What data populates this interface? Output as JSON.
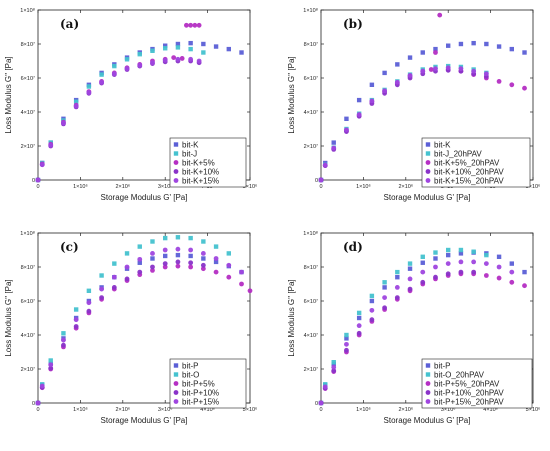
{
  "colors": {
    "blue": "#5b5fd6",
    "cyan": "#45c2cf",
    "magenta": "#b52fc4",
    "purple": "#8a33c9",
    "violet": "#a046e0"
  },
  "chart_data": [
    {
      "type": "scatter",
      "panel_label": "(a)",
      "xlabel": "Storage Modulus G' [Pa]",
      "ylabel": "Loss Modulus G'' [Pa]",
      "xlim": [
        0,
        5000000
      ],
      "ylim": [
        0,
        100000000
      ],
      "x_ticks": [
        "0",
        "1×10⁶",
        "2×10⁶",
        "3×10⁶",
        "4×10⁶",
        "5×10⁶"
      ],
      "y_ticks": [
        "0",
        "2×10⁷",
        "4×10⁷",
        "6×10⁷",
        "8×10⁷",
        "1×10⁸"
      ],
      "legend_position": "lower-right",
      "series": [
        {
          "name": "bit-K",
          "marker": "square",
          "color": "#5b5fd6",
          "x": [
            0,
            100000,
            300000,
            600000,
            900000,
            1200000,
            1500000,
            1800000,
            2100000,
            2400000,
            2700000,
            3000000,
            3300000,
            3600000,
            3900000,
            4200000,
            4500000,
            4800000
          ],
          "y": [
            0,
            10000000,
            22000000,
            36000000,
            47000000,
            56000000,
            63000000,
            68000000,
            72000000,
            75000000,
            77000000,
            79000000,
            80000000,
            80500000,
            80000000,
            78500000,
            77000000,
            75000000
          ]
        },
        {
          "name": "bit-J",
          "marker": "square",
          "color": "#45c2cf",
          "x": [
            0,
            100000,
            300000,
            600000,
            900000,
            1200000,
            1500000,
            1800000,
            2100000,
            2400000,
            2700000,
            3000000,
            3300000,
            3600000,
            3900000
          ],
          "y": [
            0,
            10000000,
            22000000,
            35000000,
            46000000,
            55000000,
            62000000,
            67000000,
            71000000,
            74000000,
            76000000,
            77500000,
            78000000,
            77000000,
            75000000
          ]
        },
        {
          "name": "bit-K+5%",
          "marker": "circle",
          "color": "#b52fc4",
          "x": [
            0,
            100000,
            300000,
            600000,
            900000,
            1200000,
            1500000,
            1800000,
            2100000,
            2400000,
            2700000,
            3000000,
            3200000,
            3400000,
            3500000,
            3600000,
            3700000,
            3800000
          ],
          "y": [
            0,
            9500000,
            21000000,
            34000000,
            44000000,
            52000000,
            58000000,
            63000000,
            66000000,
            68000000,
            70000000,
            71000000,
            72000000,
            71500000,
            91000000,
            91000000,
            91000000,
            91000000
          ]
        },
        {
          "name": "bit-K+10%",
          "marker": "circle",
          "color": "#8a33c9",
          "x": [
            0,
            100000,
            300000,
            600000,
            900000,
            1200000,
            1500000,
            1800000,
            2100000,
            2400000,
            2700000,
            3000000,
            3300000,
            3600000,
            3800000
          ],
          "y": [
            0,
            9000000,
            20000000,
            33000000,
            43000000,
            51000000,
            57000000,
            62000000,
            65000000,
            67000000,
            68500000,
            69500000,
            70000000,
            70000000,
            69000000
          ]
        },
        {
          "name": "bit-K+15%",
          "marker": "circle",
          "color": "#a046e0",
          "x": [
            0,
            100000,
            300000,
            600000,
            900000,
            1200000,
            1500000,
            1800000,
            2100000,
            2400000,
            2700000,
            3000000,
            3300000,
            3600000,
            3800000
          ],
          "y": [
            0,
            9000000,
            20500000,
            33500000,
            43500000,
            51500000,
            57500000,
            62500000,
            65500000,
            67500000,
            69000000,
            70500000,
            71000000,
            71000000,
            70000000
          ]
        }
      ]
    },
    {
      "type": "scatter",
      "panel_label": "(b)",
      "xlabel": "Storage Modulus G' [Pa]",
      "ylabel": "Loss Modulus G'' [Pa]",
      "xlim": [
        0,
        5000000
      ],
      "ylim": [
        0,
        100000000
      ],
      "x_ticks": [
        "0",
        "1×10⁶",
        "2×10⁶",
        "3×10⁶",
        "4×10⁶",
        "5×10⁶"
      ],
      "y_ticks": [
        "0",
        "2×10⁷",
        "4×10⁷",
        "6×10⁷",
        "8×10⁷",
        "1×10⁸"
      ],
      "legend_position": "lower-right",
      "series": [
        {
          "name": "bit-K",
          "marker": "square",
          "color": "#5b5fd6",
          "x": [
            0,
            100000,
            300000,
            600000,
            900000,
            1200000,
            1500000,
            1800000,
            2100000,
            2400000,
            2700000,
            3000000,
            3300000,
            3600000,
            3900000,
            4200000,
            4500000,
            4800000
          ],
          "y": [
            0,
            10000000,
            22000000,
            36000000,
            47000000,
            56000000,
            63000000,
            68000000,
            72000000,
            75000000,
            77000000,
            79000000,
            80000000,
            80500000,
            80000000,
            78500000,
            77000000,
            75000000
          ]
        },
        {
          "name": "bit-J_20hPAV",
          "marker": "square",
          "color": "#45c2cf",
          "x": [
            0,
            100000,
            300000,
            600000,
            900000,
            1200000,
            1500000,
            1800000,
            2100000,
            2400000,
            2700000,
            3000000,
            3300000,
            3600000,
            3900000
          ],
          "y": [
            0,
            9000000,
            19000000,
            30000000,
            39000000,
            47000000,
            53000000,
            58000000,
            62000000,
            65000000,
            66500000,
            67000000,
            66500000,
            65000000,
            63000000
          ]
        },
        {
          "name": "bit-K+5%_20hPAV",
          "marker": "circle",
          "color": "#b52fc4",
          "x": [
            0,
            100000,
            300000,
            600000,
            900000,
            1200000,
            1500000,
            1800000,
            2100000,
            2400000,
            2600000,
            2700000,
            2800000,
            3000000,
            3300000,
            3600000,
            3900000,
            4200000,
            4500000,
            4800000
          ],
          "y": [
            0,
            8500000,
            18500000,
            29000000,
            38000000,
            46000000,
            52000000,
            57000000,
            61000000,
            64000000,
            65000000,
            75000000,
            97000000,
            65000000,
            64000000,
            62000000,
            60000000,
            58000000,
            56000000,
            54000000
          ]
        },
        {
          "name": "bit-K+10%_20hPAV",
          "marker": "circle",
          "color": "#8a33c9",
          "x": [
            0,
            100000,
            300000,
            600000,
            900000,
            1200000,
            1500000,
            1800000,
            2100000,
            2400000,
            2700000,
            3000000,
            3300000,
            3600000,
            3900000
          ],
          "y": [
            0,
            8500000,
            18000000,
            28500000,
            37500000,
            45000000,
            51000000,
            56000000,
            60000000,
            62500000,
            64000000,
            64500000,
            64000000,
            62500000,
            61000000
          ]
        },
        {
          "name": "bit-K+15%_20hPAV",
          "marker": "circle",
          "color": "#a046e0",
          "x": [
            0,
            100000,
            300000,
            600000,
            900000,
            1200000,
            1500000,
            1800000,
            2100000,
            2400000,
            2700000,
            3000000,
            3300000,
            3600000,
            3900000
          ],
          "y": [
            0,
            8800000,
            18800000,
            29500000,
            38500000,
            46500000,
            52500000,
            57500000,
            61500000,
            64000000,
            65500000,
            66000000,
            65500000,
            64000000,
            62500000
          ]
        }
      ]
    },
    {
      "type": "scatter",
      "panel_label": "(c)",
      "xlabel": "Storage Modulus G' [Pa]",
      "ylabel": "Loss Modulus G'' [Pa]",
      "xlim": [
        0,
        5000000
      ],
      "ylim": [
        0,
        100000000
      ],
      "x_ticks": [
        "0",
        "1×10⁶",
        "2×10⁶",
        "3×10⁶",
        "4×10⁶",
        "5×10⁶"
      ],
      "y_ticks": [
        "0",
        "2×10⁷",
        "4×10⁷",
        "6×10⁷",
        "8×10⁷",
        "1×10⁸"
      ],
      "legend_position": "lower-right",
      "series": [
        {
          "name": "bit-P",
          "marker": "square",
          "color": "#5b5fd6",
          "x": [
            0,
            100000,
            300000,
            600000,
            900000,
            1200000,
            1500000,
            1800000,
            2100000,
            2400000,
            2700000,
            3000000,
            3300000,
            3600000,
            3900000,
            4200000,
            4500000,
            4800000
          ],
          "y": [
            0,
            10500000,
            23000000,
            38000000,
            50000000,
            60000000,
            68000000,
            74000000,
            79000000,
            82500000,
            85000000,
            86500000,
            87000000,
            86500000,
            85000000,
            83000000,
            80500000,
            77000000
          ]
        },
        {
          "name": "bit-O",
          "marker": "square",
          "color": "#45c2cf",
          "x": [
            0,
            100000,
            300000,
            600000,
            900000,
            1200000,
            1500000,
            1800000,
            2100000,
            2400000,
            2700000,
            3000000,
            3300000,
            3600000,
            3900000,
            4200000,
            4500000
          ],
          "y": [
            0,
            11000000,
            25000000,
            41000000,
            55000000,
            66000000,
            75000000,
            82000000,
            88000000,
            92000000,
            95000000,
            97000000,
            97500000,
            97000000,
            95000000,
            92000000,
            88000000
          ]
        },
        {
          "name": "bit-P+5%",
          "marker": "circle",
          "color": "#b52fc4",
          "x": [
            0,
            100000,
            300000,
            600000,
            900000,
            1200000,
            1500000,
            1800000,
            2100000,
            2400000,
            2700000,
            3000000,
            3300000,
            3600000,
            3900000,
            4200000,
            4500000,
            4800000,
            5000000
          ],
          "y": [
            0,
            9000000,
            20000000,
            33000000,
            44000000,
            53000000,
            61000000,
            67000000,
            72000000,
            75500000,
            78000000,
            80000000,
            80500000,
            80000000,
            79000000,
            77000000,
            74000000,
            70000000,
            66000000
          ]
        },
        {
          "name": "bit-P+10%",
          "marker": "circle",
          "color": "#8a33c9",
          "x": [
            0,
            100000,
            300000,
            600000,
            900000,
            1200000,
            1500000,
            1800000,
            2100000,
            2400000,
            2700000,
            3000000,
            3300000,
            3600000,
            3900000
          ],
          "y": [
            0,
            9200000,
            20500000,
            34000000,
            45000000,
            54000000,
            62000000,
            68000000,
            73000000,
            77000000,
            80000000,
            82000000,
            83000000,
            82500000,
            81000000
          ]
        },
        {
          "name": "bit-P+15%",
          "marker": "circle",
          "color": "#a046e0",
          "x": [
            0,
            100000,
            300000,
            600000,
            900000,
            1200000,
            1500000,
            1800000,
            2100000,
            2400000,
            2700000,
            3000000,
            3300000,
            3600000,
            3900000,
            4200000,
            4500000,
            4800000
          ],
          "y": [
            0,
            10000000,
            22500000,
            37000000,
            49000000,
            59000000,
            67000000,
            74000000,
            80000000,
            84500000,
            88000000,
            90000000,
            90500000,
            90000000,
            88000000,
            85000000,
            81000000,
            77000000
          ]
        }
      ]
    },
    {
      "type": "scatter",
      "panel_label": "(d)",
      "xlabel": "Storage Modulus G' [Pa]",
      "ylabel": "Loss Modulus G'' [Pa]",
      "xlim": [
        0,
        5000000
      ],
      "ylim": [
        0,
        100000000
      ],
      "x_ticks": [
        "0",
        "1×10⁶",
        "2×10⁶",
        "3×10⁶",
        "4×10⁶",
        "5×10⁶"
      ],
      "y_ticks": [
        "0",
        "2×10⁷",
        "4×10⁷",
        "6×10⁷",
        "8×10⁷",
        "1×10⁸"
      ],
      "legend_position": "lower-right",
      "series": [
        {
          "name": "bit-P",
          "marker": "square",
          "color": "#5b5fd6",
          "x": [
            0,
            100000,
            300000,
            600000,
            900000,
            1200000,
            1500000,
            1800000,
            2100000,
            2400000,
            2700000,
            3000000,
            3300000,
            3600000,
            3900000,
            4200000,
            4500000,
            4800000
          ],
          "y": [
            0,
            10500000,
            23000000,
            38000000,
            50000000,
            60000000,
            68000000,
            74000000,
            79000000,
            82500000,
            85000000,
            87000000,
            88000000,
            88500000,
            88000000,
            86000000,
            82000000,
            77000000
          ]
        },
        {
          "name": "bit-O_20hPAV",
          "marker": "square",
          "color": "#45c2cf",
          "x": [
            0,
            100000,
            300000,
            600000,
            900000,
            1200000,
            1500000,
            1800000,
            2100000,
            2400000,
            2700000,
            3000000,
            3300000,
            3600000,
            3900000
          ],
          "y": [
            0,
            11000000,
            24000000,
            40000000,
            53000000,
            63000000,
            71000000,
            77000000,
            82000000,
            86000000,
            88500000,
            90000000,
            90000000,
            89000000,
            87000000
          ]
        },
        {
          "name": "bit-P+5%_20hPAV",
          "marker": "circle",
          "color": "#b52fc4",
          "x": [
            0,
            100000,
            300000,
            600000,
            900000,
            1200000,
            1500000,
            1800000,
            2100000,
            2400000,
            2700000,
            3000000,
            3300000,
            3600000,
            3900000,
            4200000,
            4500000,
            4800000
          ],
          "y": [
            0,
            8500000,
            18500000,
            30000000,
            40000000,
            48000000,
            55000000,
            61000000,
            66000000,
            70000000,
            73000000,
            75000000,
            76000000,
            76000000,
            75000000,
            73500000,
            71000000,
            69000000
          ]
        },
        {
          "name": "bit-P+10%_20hPAV",
          "marker": "circle",
          "color": "#8a33c9",
          "x": [
            0,
            100000,
            300000,
            600000,
            900000,
            1200000,
            1500000,
            1800000,
            2100000,
            2400000,
            2700000,
            3000000,
            3300000,
            3600000
          ],
          "y": [
            0,
            8800000,
            19000000,
            31000000,
            41000000,
            49000000,
            56000000,
            62000000,
            67000000,
            71000000,
            74000000,
            76000000,
            77000000,
            77000000
          ]
        },
        {
          "name": "bit-P+15%_20hPAV",
          "marker": "circle",
          "color": "#a046e0",
          "x": [
            0,
            100000,
            300000,
            600000,
            900000,
            1200000,
            1500000,
            1800000,
            2100000,
            2400000,
            2700000,
            3000000,
            3300000,
            3600000,
            3900000,
            4200000,
            4500000
          ],
          "y": [
            0,
            9500000,
            21000000,
            34500000,
            45500000,
            54500000,
            62000000,
            68000000,
            73000000,
            77000000,
            80000000,
            82000000,
            83000000,
            83000000,
            82000000,
            80000000,
            77000000
          ]
        }
      ]
    }
  ]
}
